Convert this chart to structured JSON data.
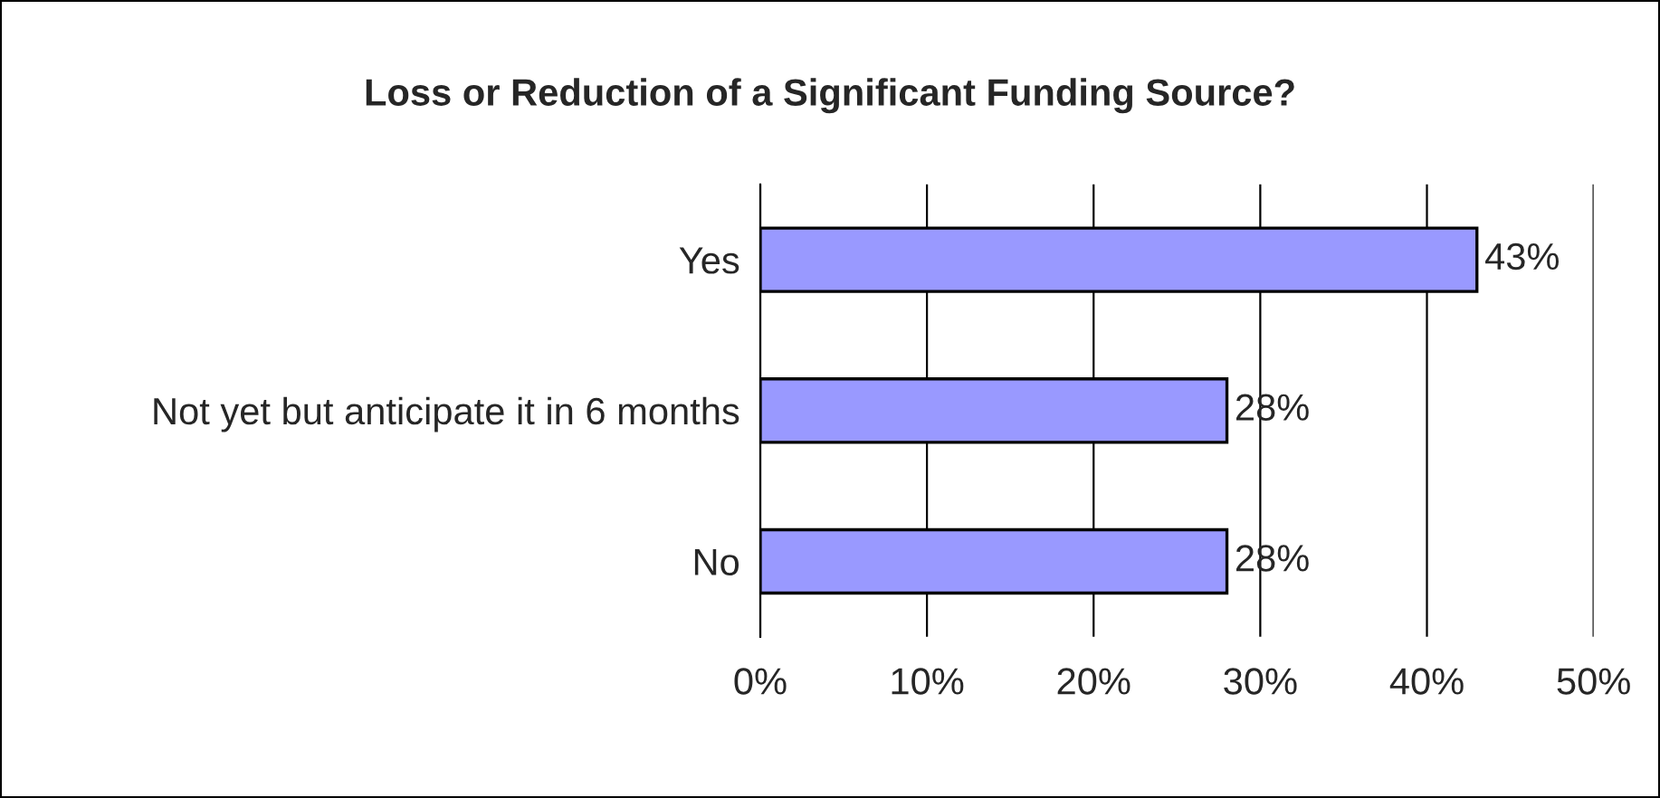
{
  "chart_data": {
    "type": "bar",
    "orientation": "horizontal",
    "title": "Loss or Reduction of a Significant Funding Source?",
    "categories": [
      "Yes",
      "Not yet but anticipate it in 6 months",
      "No"
    ],
    "values": [
      43,
      28,
      28
    ],
    "value_labels": [
      "43%",
      "28%",
      "28%"
    ],
    "color": "#9999ff",
    "xlim": [
      0,
      50
    ],
    "xticks": [
      {
        "value": 0,
        "label": "0%"
      },
      {
        "value": 10,
        "label": "10%"
      },
      {
        "value": 20,
        "label": "20%"
      },
      {
        "value": 30,
        "label": "30%"
      },
      {
        "value": 40,
        "label": "40%"
      },
      {
        "value": 50,
        "label": "50%"
      }
    ],
    "grid": "x",
    "legend": false
  }
}
